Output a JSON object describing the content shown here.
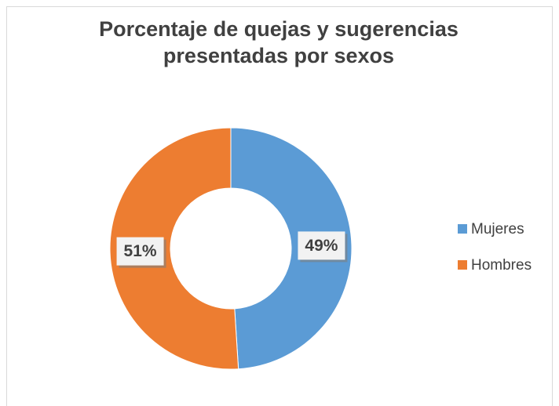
{
  "chart_data": {
    "type": "donut",
    "title": "Porcentaje de quejas y sugerencias presentadas por sexos",
    "categories": [
      "Mujeres",
      "Hombres"
    ],
    "values": [
      49,
      51
    ],
    "value_labels": [
      "49%",
      "51%"
    ],
    "colors": [
      "#5b9bd5",
      "#ed7d31"
    ],
    "legend": "right"
  }
}
